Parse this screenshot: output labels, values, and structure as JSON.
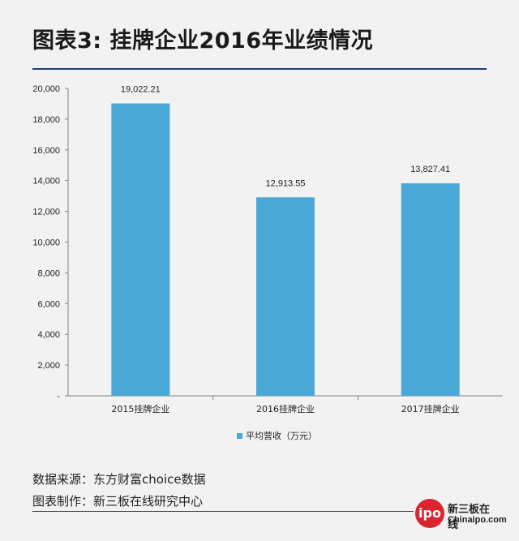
{
  "header": {
    "title": "图表3: 挂牌企业2016年业绩情况"
  },
  "chart_data": {
    "type": "bar",
    "categories": [
      "2015挂牌企业",
      "2016挂牌企业",
      "2017挂牌企业"
    ],
    "series": [
      {
        "name": "平均营收（万元）",
        "values": [
          19022.21,
          12913.55,
          13827.41
        ]
      }
    ],
    "data_labels": [
      "19,022.21",
      "12,913.55",
      "13,827.41"
    ],
    "yticks": [
      "-",
      "2,000",
      "4,000",
      "6,000",
      "8,000",
      "10,000",
      "12,000",
      "14,000",
      "16,000",
      "18,000",
      "20,000"
    ],
    "ylim": [
      0,
      20000
    ],
    "legend_position": "bottom",
    "bar_color": "#4aa8d8",
    "title": "",
    "xlabel": "",
    "ylabel": ""
  },
  "footer": {
    "source": "数据来源：东方财富choice数据",
    "maker": "图表制作：新三板在线研究中心"
  },
  "logo": {
    "mark": "ipo",
    "cn": "新三板在线",
    "en": "Chinaipo.com",
    "color": "#d9262e"
  }
}
